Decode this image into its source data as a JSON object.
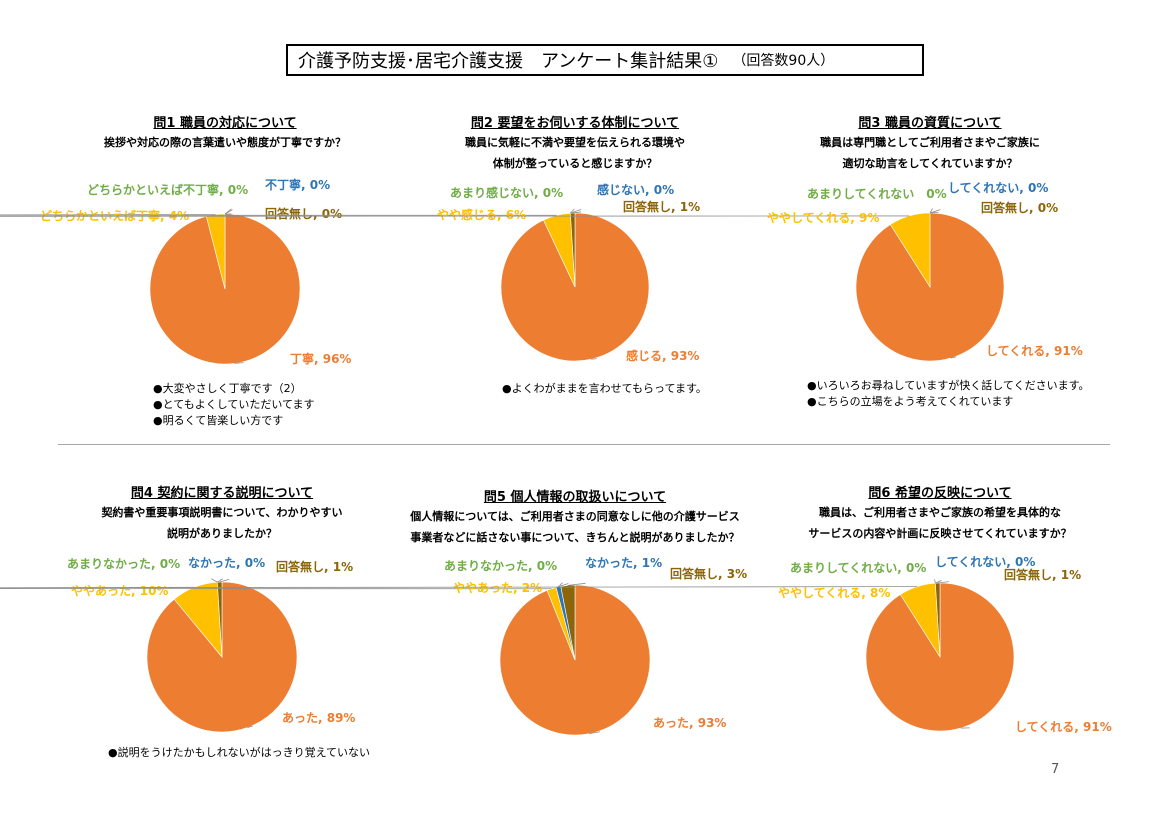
{
  "header": {
    "title": "介護予防支援･居宅介護支援　アンケート集計結果①",
    "respondents": "（回答数90人）"
  },
  "page_number": "7",
  "colors": {
    "main": "#ED7D31",
    "second": "#FFC000",
    "third": "#70AD47",
    "fourth": "#2E75B6",
    "noanswer": "#8B6508"
  },
  "questions": [
    {
      "title": "問1 職員の対応について",
      "text": [
        "挨拶や対応の際の言葉遣いや態度が丁寧ですか？"
      ],
      "labels": [
        "丁寧, 96%",
        "どちらかといえば丁寧, 4%",
        "どちらかといえば不丁寧, 0%",
        "不丁寧, 0%",
        "回答無し, 0%"
      ],
      "comments": [
        "●大変やさしく丁寧です（2）",
        "●とてもよくしていただいてます",
        "●明るくて皆楽しい方です"
      ]
    },
    {
      "title": "問2 要望をお伺いする体制について",
      "text": [
        "職員に気軽に不満や要望を伝えられる環境や",
        "体制が整っていると感じますか？"
      ],
      "labels": [
        "感じる, 93%",
        "やや感じる, 6%",
        "あまり感じない, 0%",
        "感じない, 0%",
        "回答無し, 1%"
      ],
      "comments": [
        "●よくわがままを言わせてもらってます。"
      ]
    },
    {
      "title": "問3 職員の資質について",
      "text": [
        "職員は専門職としてご利用者さまやご家族に",
        "適切な助言をしてくれていますか？"
      ],
      "labels": [
        "してくれる, 91%",
        "ややしてくれる, 9%",
        "あまりしてくれない　0%",
        "してくれない, 0%",
        "回答無し, 0%"
      ],
      "comments": [
        "●いろいろお尋ねしていますが快く話してくださいます。",
        "●こちらの立場をよう考えてくれています"
      ]
    },
    {
      "title": "問4 契約に関する説明について",
      "text": [
        "契約書や重要事項説明書について、わかりやすい",
        "説明がありましたか？"
      ],
      "labels": [
        "あった, 89%",
        "ややあった, 10%",
        "あまりなかった, 0%",
        "なかった, 0%",
        "回答無し, 1%"
      ],
      "comments": [
        "●説明をうけたかもしれないがはっきり覚えていない"
      ]
    },
    {
      "title": "問5 個人情報の取扱いについて",
      "text": [
        "個人情報については、ご利用者さまの同意なしに他の介護サービス",
        "事業者などに話さない事について、きちんと説明がありましたか？"
      ],
      "labels": [
        "あった, 93%",
        "ややあった, 2%",
        "あまりなかった, 0%",
        "なかった, 1%",
        "回答無し, 3%"
      ],
      "comments": []
    },
    {
      "title": "問6 希望の反映について",
      "text": [
        "職員は、ご利用者さまやご家族の希望を具体的な",
        "サービスの内容や計画に反映させてくれていますか？"
      ],
      "labels": [
        "してくれる, 91%",
        "ややしてくれる, 8%",
        "あまりしてくれない, 0%",
        "してくれない, 0%",
        "回答無し, 1%"
      ],
      "comments": []
    }
  ],
  "chart_data": [
    {
      "type": "pie",
      "title": "問1 職員の対応について",
      "categories": [
        "丁寧",
        "どちらかといえば丁寧",
        "どちらかといえば不丁寧",
        "不丁寧",
        "回答無し"
      ],
      "values": [
        96,
        4,
        0,
        0,
        0
      ]
    },
    {
      "type": "pie",
      "title": "問2 要望をお伺いする体制について",
      "categories": [
        "感じる",
        "やや感じる",
        "あまり感じない",
        "感じない",
        "回答無し"
      ],
      "values": [
        93,
        6,
        0,
        0,
        1
      ]
    },
    {
      "type": "pie",
      "title": "問3 職員の資質について",
      "categories": [
        "してくれる",
        "ややしてくれる",
        "あまりしてくれない",
        "してくれない",
        "回答無し"
      ],
      "values": [
        91,
        9,
        0,
        0,
        0
      ]
    },
    {
      "type": "pie",
      "title": "問4 契約に関する説明について",
      "categories": [
        "あった",
        "ややあった",
        "あまりなかった",
        "なかった",
        "回答無し"
      ],
      "values": [
        89,
        10,
        0,
        0,
        1
      ]
    },
    {
      "type": "pie",
      "title": "問5 個人情報の取扱いについて",
      "categories": [
        "あった",
        "ややあった",
        "あまりなかった",
        "なかった",
        "回答無し"
      ],
      "values": [
        93,
        2,
        0,
        1,
        3
      ]
    },
    {
      "type": "pie",
      "title": "問6 希望の反映について",
      "categories": [
        "してくれる",
        "ややしてくれる",
        "あまりしてくれない",
        "してくれない",
        "回答無し"
      ],
      "values": [
        91,
        8,
        0,
        0,
        1
      ]
    }
  ]
}
